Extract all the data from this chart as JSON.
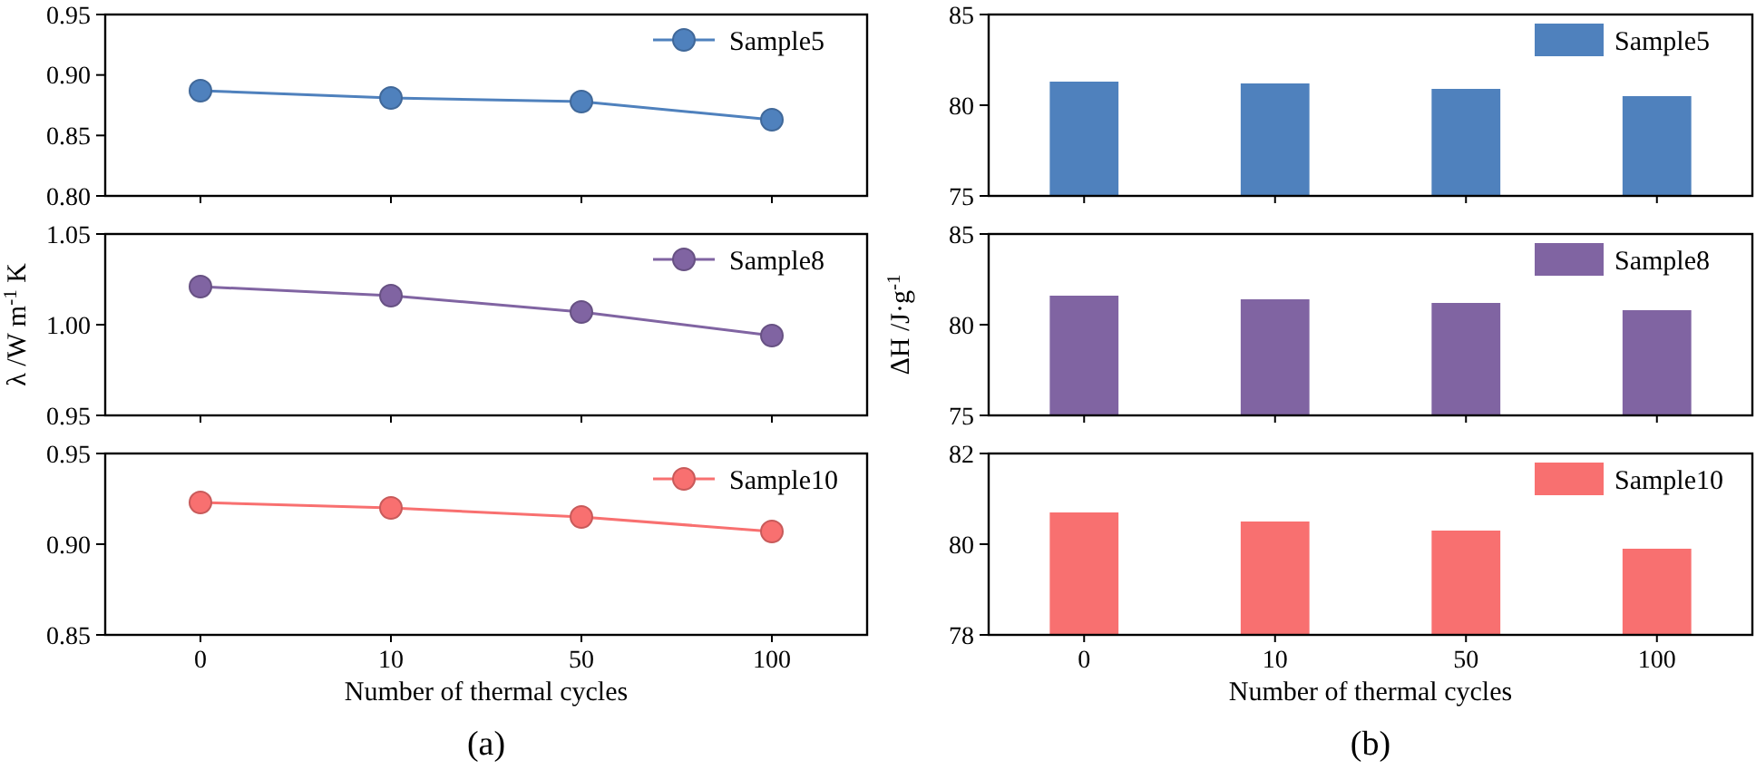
{
  "chart_data": [
    {
      "type": "line",
      "categories": [
        "0",
        "10",
        "50",
        "100"
      ],
      "series": [
        {
          "name": "Sample5",
          "color": "#4f81bd",
          "values": [
            0.887,
            0.881,
            0.878,
            0.863
          ]
        }
      ],
      "ylim": [
        0.8,
        0.95
      ],
      "yticks": [
        {
          "value": 0.8,
          "label": "0.80"
        },
        {
          "value": 0.85,
          "label": "0.85"
        },
        {
          "value": 0.9,
          "label": "0.90"
        },
        {
          "value": 0.95,
          "label": "0.95"
        }
      ],
      "legend": "top right",
      "marker": "circle",
      "tick_labels": "y"
    },
    {
      "type": "bar",
      "categories": [
        "0",
        "10",
        "50",
        "100"
      ],
      "series": [
        {
          "name": "Sample5",
          "color": "#4f81bd",
          "values": [
            81.3,
            81.2,
            80.9,
            80.5
          ]
        }
      ],
      "ylim": [
        75,
        85
      ],
      "yticks": [
        75,
        80,
        85
      ],
      "legend": "top right",
      "tick_labels": "y"
    },
    {
      "type": "line",
      "categories": [
        "0",
        "10",
        "50",
        "100"
      ],
      "series": [
        {
          "name": "Sample8",
          "color": "#8064a2",
          "values": [
            1.021,
            1.016,
            1.007,
            0.994
          ]
        }
      ],
      "ylim": [
        0.95,
        1.05
      ],
      "yticks": [
        {
          "value": 0.95,
          "label": "0.95"
        },
        {
          "value": 1.0,
          "label": "1.00"
        },
        {
          "value": 1.05,
          "label": "1.05"
        }
      ],
      "ylabel": "λ /W m$^{-1}$ K",
      "legend": "top right",
      "marker": "circle",
      "tick_labels": "y"
    },
    {
      "type": "bar",
      "categories": [
        "0",
        "10",
        "50",
        "100"
      ],
      "series": [
        {
          "name": "Sample8",
          "color": "#8064a2",
          "values": [
            81.6,
            81.4,
            81.2,
            80.8
          ]
        }
      ],
      "ylim": [
        75,
        85
      ],
      "yticks": [
        75,
        80,
        85
      ],
      "ylabel": "ΔH /J·g$^{-1}$",
      "legend": "top right",
      "tick_labels": "y"
    },
    {
      "type": "line",
      "categories": [
        "0",
        "10",
        "50",
        "100"
      ],
      "series": [
        {
          "name": "Sample10",
          "color": "#f87070",
          "values": [
            0.923,
            0.92,
            0.915,
            0.907
          ]
        }
      ],
      "ylim": [
        0.85,
        0.95
      ],
      "yticks": [
        {
          "value": 0.85,
          "label": "0.85"
        },
        {
          "value": 0.9,
          "label": "0.90"
        },
        {
          "value": 0.95,
          "label": "0.95"
        }
      ],
      "xlabel": "Number of thermal cycles",
      "annotations": [
        "(a)"
      ],
      "legend": "top right",
      "marker": "circle"
    },
    {
      "type": "bar",
      "categories": [
        "0",
        "10",
        "50",
        "100"
      ],
      "series": [
        {
          "name": "Sample10",
          "color": "#f87070",
          "values": [
            80.7,
            80.5,
            80.3,
            79.9
          ]
        }
      ],
      "ylim": [
        78,
        82
      ],
      "yticks": [
        78,
        80,
        82
      ],
      "xlabel": "Number of thermal cycles",
      "annotations": [
        "(b)"
      ],
      "legend": "top right"
    }
  ]
}
